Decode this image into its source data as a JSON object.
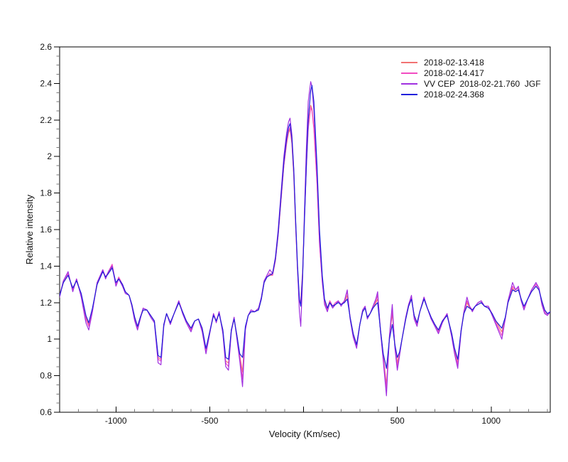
{
  "figure": {
    "background": "#ffffff"
  },
  "chart_data": {
    "type": "line",
    "title": "",
    "xlabel": "Velocity (Km/sec)",
    "ylabel": "Relative intensity",
    "xlim": [
      -1300,
      1315
    ],
    "ylim": [
      0.6,
      2.6
    ],
    "grid": false,
    "legend_position": "top-right",
    "x_major_ticks": [
      -1000,
      -500,
      0,
      500,
      1000
    ],
    "x_tick_labels": [
      -1000,
      -500,
      500,
      1000
    ],
    "x_minor_tick_step": 100,
    "y_major_tick_step": 0.2,
    "y_minor_tick_step": 0.05,
    "y_tick_labels": [
      "0.6",
      "0.8",
      "1",
      "1.2",
      "1.4",
      "1.6",
      "1.8",
      "2",
      "2.2",
      "2.4",
      "2.6"
    ],
    "axis_color": "#000000",
    "x": [
      -1300,
      -1280,
      -1255,
      -1230,
      -1210,
      -1185,
      -1160,
      -1145,
      -1125,
      -1100,
      -1070,
      -1055,
      -1040,
      -1020,
      -1000,
      -985,
      -965,
      -950,
      -930,
      -915,
      -900,
      -885,
      -870,
      -855,
      -835,
      -815,
      -795,
      -775,
      -760,
      -745,
      -730,
      -710,
      -690,
      -665,
      -645,
      -625,
      -600,
      -580,
      -560,
      -540,
      -520,
      -500,
      -480,
      -465,
      -450,
      -430,
      -415,
      -400,
      -385,
      -370,
      -355,
      -340,
      -325,
      -310,
      -295,
      -280,
      -260,
      -240,
      -225,
      -210,
      -195,
      -180,
      -165,
      -150,
      -135,
      -120,
      -105,
      -90,
      -80,
      -72,
      -62,
      -52,
      -42,
      -32,
      -22,
      -15,
      -5,
      5,
      15,
      25,
      38,
      45,
      55,
      72,
      85,
      100,
      112,
      127,
      140,
      155,
      170,
      185,
      200,
      218,
      233,
      248,
      265,
      283,
      300,
      315,
      328,
      340,
      355,
      370,
      385,
      395,
      410,
      425,
      442,
      458,
      473,
      487,
      500,
      512,
      525,
      545,
      560,
      575,
      590,
      605,
      620,
      642,
      660,
      680,
      700,
      719,
      740,
      765,
      790,
      805,
      822,
      840,
      855,
      871,
      885,
      900,
      915,
      930,
      947,
      965,
      985,
      1005,
      1025,
      1057,
      1075,
      1090,
      1114,
      1130,
      1145,
      1160,
      1175,
      1195,
      1215,
      1239,
      1255,
      1270,
      1285,
      1300,
      1315
    ],
    "series": [
      {
        "name": "2018-02-13.418",
        "color": "#f27272",
        "values": [
          1.24,
          1.31,
          1.35,
          1.28,
          1.32,
          1.24,
          1.12,
          1.08,
          1.16,
          1.3,
          1.37,
          1.34,
          1.36,
          1.4,
          1.3,
          1.33,
          1.3,
          1.26,
          1.24,
          1.19,
          1.12,
          1.07,
          1.12,
          1.16,
          1.16,
          1.13,
          1.1,
          0.9,
          0.89,
          1.08,
          1.14,
          1.09,
          1.14,
          1.2,
          1.15,
          1.1,
          1.06,
          1.1,
          1.11,
          1.06,
          0.94,
          1.04,
          1.13,
          1.1,
          1.14,
          1.05,
          0.88,
          0.87,
          1.05,
          1.11,
          1.02,
          0.91,
          0.82,
          1.06,
          1.13,
          1.15,
          1.15,
          1.16,
          1.22,
          1.31,
          1.34,
          1.35,
          1.35,
          1.43,
          1.57,
          1.76,
          1.95,
          2.07,
          2.13,
          2.15,
          2.07,
          1.89,
          1.62,
          1.38,
          1.21,
          1.21,
          1.37,
          1.67,
          1.95,
          2.16,
          2.28,
          2.26,
          2.16,
          1.86,
          1.53,
          1.32,
          1.21,
          1.17,
          1.21,
          1.18,
          1.19,
          1.2,
          1.19,
          1.2,
          1.24,
          1.12,
          1.03,
          0.97,
          1.08,
          1.15,
          1.17,
          1.12,
          1.14,
          1.17,
          1.2,
          1.22,
          1.05,
          0.91,
          0.75,
          1.01,
          1.14,
          0.97,
          0.87,
          0.93,
          1.0,
          1.11,
          1.18,
          1.22,
          1.13,
          1.09,
          1.15,
          1.22,
          1.17,
          1.12,
          1.08,
          1.05,
          1.1,
          1.13,
          1.03,
          0.94,
          0.87,
          1.05,
          1.14,
          1.2,
          1.17,
          1.16,
          1.18,
          1.19,
          1.2,
          1.18,
          1.17,
          1.14,
          1.1,
          1.04,
          1.11,
          1.2,
          1.28,
          1.26,
          1.27,
          1.22,
          1.17,
          1.22,
          1.26,
          1.29,
          1.27,
          1.21,
          1.16,
          1.14,
          1.15
        ]
      },
      {
        "name": "2018-02-14.417",
        "color": "#f24cc2",
        "values": [
          1.24,
          1.32,
          1.36,
          1.27,
          1.33,
          1.24,
          1.11,
          1.07,
          1.16,
          1.31,
          1.38,
          1.34,
          1.37,
          1.41,
          1.3,
          1.34,
          1.3,
          1.26,
          1.24,
          1.19,
          1.11,
          1.06,
          1.12,
          1.17,
          1.16,
          1.13,
          1.1,
          0.89,
          0.88,
          1.08,
          1.14,
          1.09,
          1.14,
          1.21,
          1.15,
          1.1,
          1.05,
          1.1,
          1.11,
          1.05,
          0.93,
          1.04,
          1.14,
          1.1,
          1.15,
          1.04,
          0.87,
          0.85,
          1.05,
          1.12,
          1.01,
          0.9,
          0.78,
          1.06,
          1.13,
          1.16,
          1.15,
          1.17,
          1.22,
          1.31,
          1.34,
          1.36,
          1.35,
          1.43,
          1.57,
          1.76,
          1.95,
          2.08,
          2.14,
          2.16,
          2.08,
          1.9,
          1.62,
          1.37,
          1.2,
          1.2,
          1.36,
          1.66,
          1.94,
          2.15,
          2.27,
          2.25,
          2.15,
          1.85,
          1.52,
          1.31,
          1.2,
          1.16,
          1.21,
          1.18,
          1.2,
          1.21,
          1.19,
          1.21,
          1.26,
          1.12,
          1.02,
          0.96,
          1.08,
          1.16,
          1.18,
          1.12,
          1.14,
          1.18,
          1.21,
          1.24,
          1.05,
          0.9,
          0.73,
          1.01,
          1.16,
          0.96,
          0.85,
          0.92,
          1.0,
          1.12,
          1.19,
          1.23,
          1.12,
          1.08,
          1.15,
          1.23,
          1.17,
          1.12,
          1.08,
          1.04,
          1.1,
          1.14,
          1.02,
          0.93,
          0.86,
          1.05,
          1.15,
          1.21,
          1.18,
          1.16,
          1.18,
          1.2,
          1.21,
          1.18,
          1.18,
          1.14,
          1.09,
          1.02,
          1.11,
          1.21,
          1.29,
          1.27,
          1.28,
          1.22,
          1.17,
          1.22,
          1.27,
          1.3,
          1.28,
          1.2,
          1.15,
          1.13,
          1.15
        ]
      },
      {
        "name": "VV CEP  2018-02-21.760  JGF",
        "color": "#a030e0",
        "values": [
          1.23,
          1.32,
          1.37,
          1.26,
          1.33,
          1.23,
          1.09,
          1.05,
          1.15,
          1.31,
          1.38,
          1.33,
          1.37,
          1.4,
          1.29,
          1.33,
          1.29,
          1.25,
          1.24,
          1.18,
          1.1,
          1.05,
          1.11,
          1.17,
          1.16,
          1.12,
          1.09,
          0.87,
          0.86,
          1.07,
          1.14,
          1.08,
          1.14,
          1.21,
          1.14,
          1.09,
          1.04,
          1.1,
          1.11,
          1.04,
          0.92,
          1.03,
          1.14,
          1.09,
          1.15,
          1.03,
          0.85,
          0.83,
          1.04,
          1.12,
          1.0,
          0.88,
          0.74,
          1.05,
          1.13,
          1.16,
          1.15,
          1.17,
          1.23,
          1.32,
          1.35,
          1.38,
          1.36,
          1.45,
          1.6,
          1.8,
          2.0,
          2.13,
          2.19,
          2.21,
          2.12,
          1.93,
          1.64,
          1.38,
          1.15,
          1.07,
          1.33,
          1.7,
          2.05,
          2.3,
          2.41,
          2.38,
          2.25,
          1.9,
          1.55,
          1.32,
          1.19,
          1.15,
          1.2,
          1.17,
          1.19,
          1.21,
          1.18,
          1.21,
          1.27,
          1.11,
          1.01,
          0.95,
          1.08,
          1.16,
          1.18,
          1.11,
          1.14,
          1.18,
          1.22,
          1.26,
          1.04,
          0.88,
          0.69,
          1.02,
          1.19,
          0.95,
          0.83,
          0.91,
          1.0,
          1.12,
          1.19,
          1.24,
          1.11,
          1.07,
          1.15,
          1.23,
          1.17,
          1.11,
          1.07,
          1.03,
          1.09,
          1.14,
          1.01,
          0.92,
          0.84,
          1.04,
          1.15,
          1.23,
          1.18,
          1.15,
          1.18,
          1.2,
          1.21,
          1.18,
          1.18,
          1.13,
          1.08,
          1.0,
          1.11,
          1.21,
          1.31,
          1.27,
          1.29,
          1.21,
          1.16,
          1.22,
          1.27,
          1.31,
          1.28,
          1.19,
          1.14,
          1.13,
          1.15
        ]
      },
      {
        "name": "2018-02-24.368",
        "color": "#2020dc",
        "values": [
          1.24,
          1.31,
          1.35,
          1.28,
          1.32,
          1.25,
          1.13,
          1.09,
          1.17,
          1.3,
          1.37,
          1.34,
          1.36,
          1.39,
          1.31,
          1.33,
          1.3,
          1.26,
          1.24,
          1.19,
          1.12,
          1.07,
          1.12,
          1.16,
          1.16,
          1.13,
          1.1,
          0.91,
          0.9,
          1.08,
          1.14,
          1.09,
          1.14,
          1.2,
          1.15,
          1.1,
          1.06,
          1.1,
          1.11,
          1.06,
          0.95,
          1.04,
          1.13,
          1.1,
          1.14,
          1.05,
          0.9,
          0.89,
          1.05,
          1.11,
          1.02,
          0.92,
          0.9,
          1.07,
          1.13,
          1.15,
          1.15,
          1.16,
          1.22,
          1.31,
          1.34,
          1.35,
          1.36,
          1.44,
          1.58,
          1.78,
          1.97,
          2.1,
          2.16,
          2.18,
          2.1,
          1.92,
          1.65,
          1.4,
          1.22,
          1.18,
          1.35,
          1.65,
          1.95,
          2.2,
          2.36,
          2.39,
          2.3,
          1.95,
          1.6,
          1.35,
          1.22,
          1.17,
          1.2,
          1.18,
          1.19,
          1.2,
          1.19,
          1.2,
          1.22,
          1.12,
          1.03,
          0.97,
          1.08,
          1.15,
          1.17,
          1.12,
          1.14,
          1.17,
          1.19,
          1.2,
          1.05,
          0.92,
          0.84,
          1.0,
          1.08,
          0.97,
          0.9,
          0.93,
          1.0,
          1.11,
          1.18,
          1.22,
          1.13,
          1.09,
          1.15,
          1.22,
          1.17,
          1.12,
          1.08,
          1.05,
          1.1,
          1.13,
          1.03,
          0.95,
          0.89,
          1.05,
          1.14,
          1.18,
          1.17,
          1.16,
          1.18,
          1.19,
          1.2,
          1.18,
          1.17,
          1.14,
          1.1,
          1.06,
          1.12,
          1.2,
          1.27,
          1.26,
          1.27,
          1.22,
          1.18,
          1.22,
          1.26,
          1.29,
          1.27,
          1.21,
          1.16,
          1.14,
          1.15
        ]
      }
    ]
  }
}
